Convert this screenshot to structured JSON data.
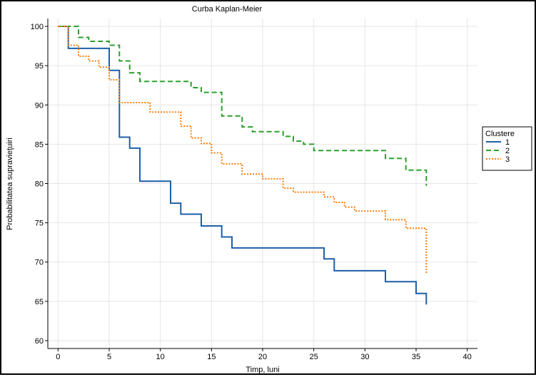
{
  "chart_data": {
    "type": "line",
    "step": true,
    "title": "Curba Kaplan-Meier",
    "xlabel": "Timp, luni",
    "ylabel": "Probabilitatea supravieţuiri",
    "xlim": [
      -1,
      41
    ],
    "ylim": [
      59,
      101
    ],
    "xticks": [
      0,
      5,
      10,
      15,
      20,
      25,
      30,
      35,
      40
    ],
    "yticks": [
      60,
      65,
      70,
      75,
      80,
      85,
      90,
      95,
      100
    ],
    "grid": true,
    "legend": {
      "title": "Clustere",
      "position": "right"
    },
    "series": [
      {
        "name": "1",
        "color": "#1f5fa8",
        "dash": "solid",
        "points": [
          [
            0,
            100
          ],
          [
            1,
            97.2
          ],
          [
            5,
            94.4
          ],
          [
            6,
            85.9
          ],
          [
            7,
            84.5
          ],
          [
            8,
            80.3
          ],
          [
            11,
            77.5
          ],
          [
            12,
            76.1
          ],
          [
            14,
            74.6
          ],
          [
            16,
            73.2
          ],
          [
            17,
            71.8
          ],
          [
            26,
            70.4
          ],
          [
            27,
            68.9
          ],
          [
            32,
            67.5
          ],
          [
            35,
            66.0
          ],
          [
            36,
            64.6
          ]
        ]
      },
      {
        "name": "2",
        "color": "#2ca02c",
        "dash": "dashed",
        "points": [
          [
            0,
            100
          ],
          [
            2,
            98.6
          ],
          [
            3,
            98.1
          ],
          [
            5,
            97.6
          ],
          [
            6,
            95.6
          ],
          [
            7,
            94.1
          ],
          [
            8,
            93.0
          ],
          [
            13,
            92.2
          ],
          [
            14,
            91.6
          ],
          [
            16,
            88.6
          ],
          [
            18,
            87.2
          ],
          [
            19,
            86.6
          ],
          [
            22,
            86.0
          ],
          [
            23,
            85.4
          ],
          [
            24,
            85.0
          ],
          [
            25,
            84.2
          ],
          [
            32,
            83.2
          ],
          [
            34,
            81.7
          ],
          [
            36,
            79.7
          ]
        ]
      },
      {
        "name": "3",
        "color": "#ff7f0e",
        "dash": "dotted",
        "points": [
          [
            0,
            100
          ],
          [
            1,
            97.6
          ],
          [
            2,
            96.2
          ],
          [
            3,
            95.6
          ],
          [
            4,
            94.8
          ],
          [
            5,
            93.2
          ],
          [
            6,
            90.3
          ],
          [
            9,
            89.1
          ],
          [
            12,
            87.3
          ],
          [
            13,
            85.8
          ],
          [
            14,
            85.1
          ],
          [
            15,
            83.9
          ],
          [
            16,
            82.5
          ],
          [
            18,
            81.2
          ],
          [
            20,
            80.6
          ],
          [
            22,
            79.4
          ],
          [
            23,
            78.9
          ],
          [
            26,
            78.3
          ],
          [
            27,
            77.6
          ],
          [
            28,
            77.0
          ],
          [
            29,
            76.5
          ],
          [
            32,
            75.4
          ],
          [
            34,
            74.3
          ],
          [
            36,
            68.5
          ]
        ]
      }
    ]
  }
}
